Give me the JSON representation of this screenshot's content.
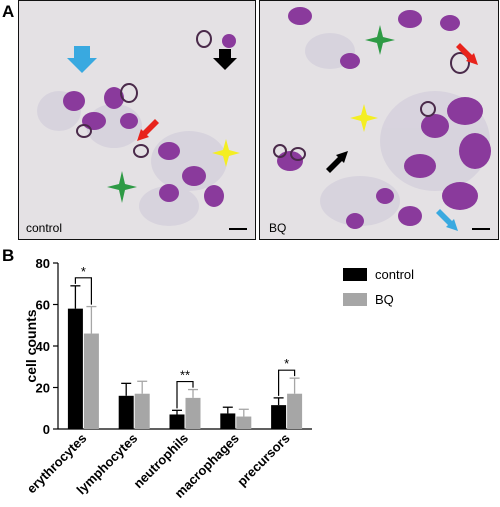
{
  "panels": {
    "a_label": "A",
    "b_label": "B",
    "left_image_label": "control",
    "right_image_label": "BQ"
  },
  "colors": {
    "control": "#000000",
    "bq": "#a6a6a6",
    "arrow_blue": "#39a9e0",
    "arrow_red": "#e8231c",
    "arrow_black": "#000000",
    "star_green": "#2e9a45",
    "star_yellow": "#f4ee22",
    "stain_purple": "#8a3a9c"
  },
  "chart_data": {
    "type": "bar",
    "ylabel": "cell counts",
    "ylim": [
      0,
      80
    ],
    "yticks": [
      0,
      20,
      40,
      60,
      80
    ],
    "categories": [
      "erythrocytes",
      "lymphocytes",
      "neutrophils",
      "macrophages",
      "precursors"
    ],
    "series": [
      {
        "name": "control",
        "values": [
          58,
          16,
          7,
          7.5,
          11.5
        ],
        "errors": [
          11,
          6,
          2,
          3,
          3.5
        ]
      },
      {
        "name": "BQ",
        "values": [
          46,
          17,
          15,
          6,
          17
        ],
        "errors": [
          13,
          6,
          4,
          3.5,
          7.5
        ]
      }
    ],
    "significance": [
      {
        "category": "erythrocytes",
        "label": "*"
      },
      {
        "category": "neutrophils",
        "label": "**"
      },
      {
        "category": "precursors",
        "label": "*"
      }
    ],
    "legend_position": "top-right"
  }
}
